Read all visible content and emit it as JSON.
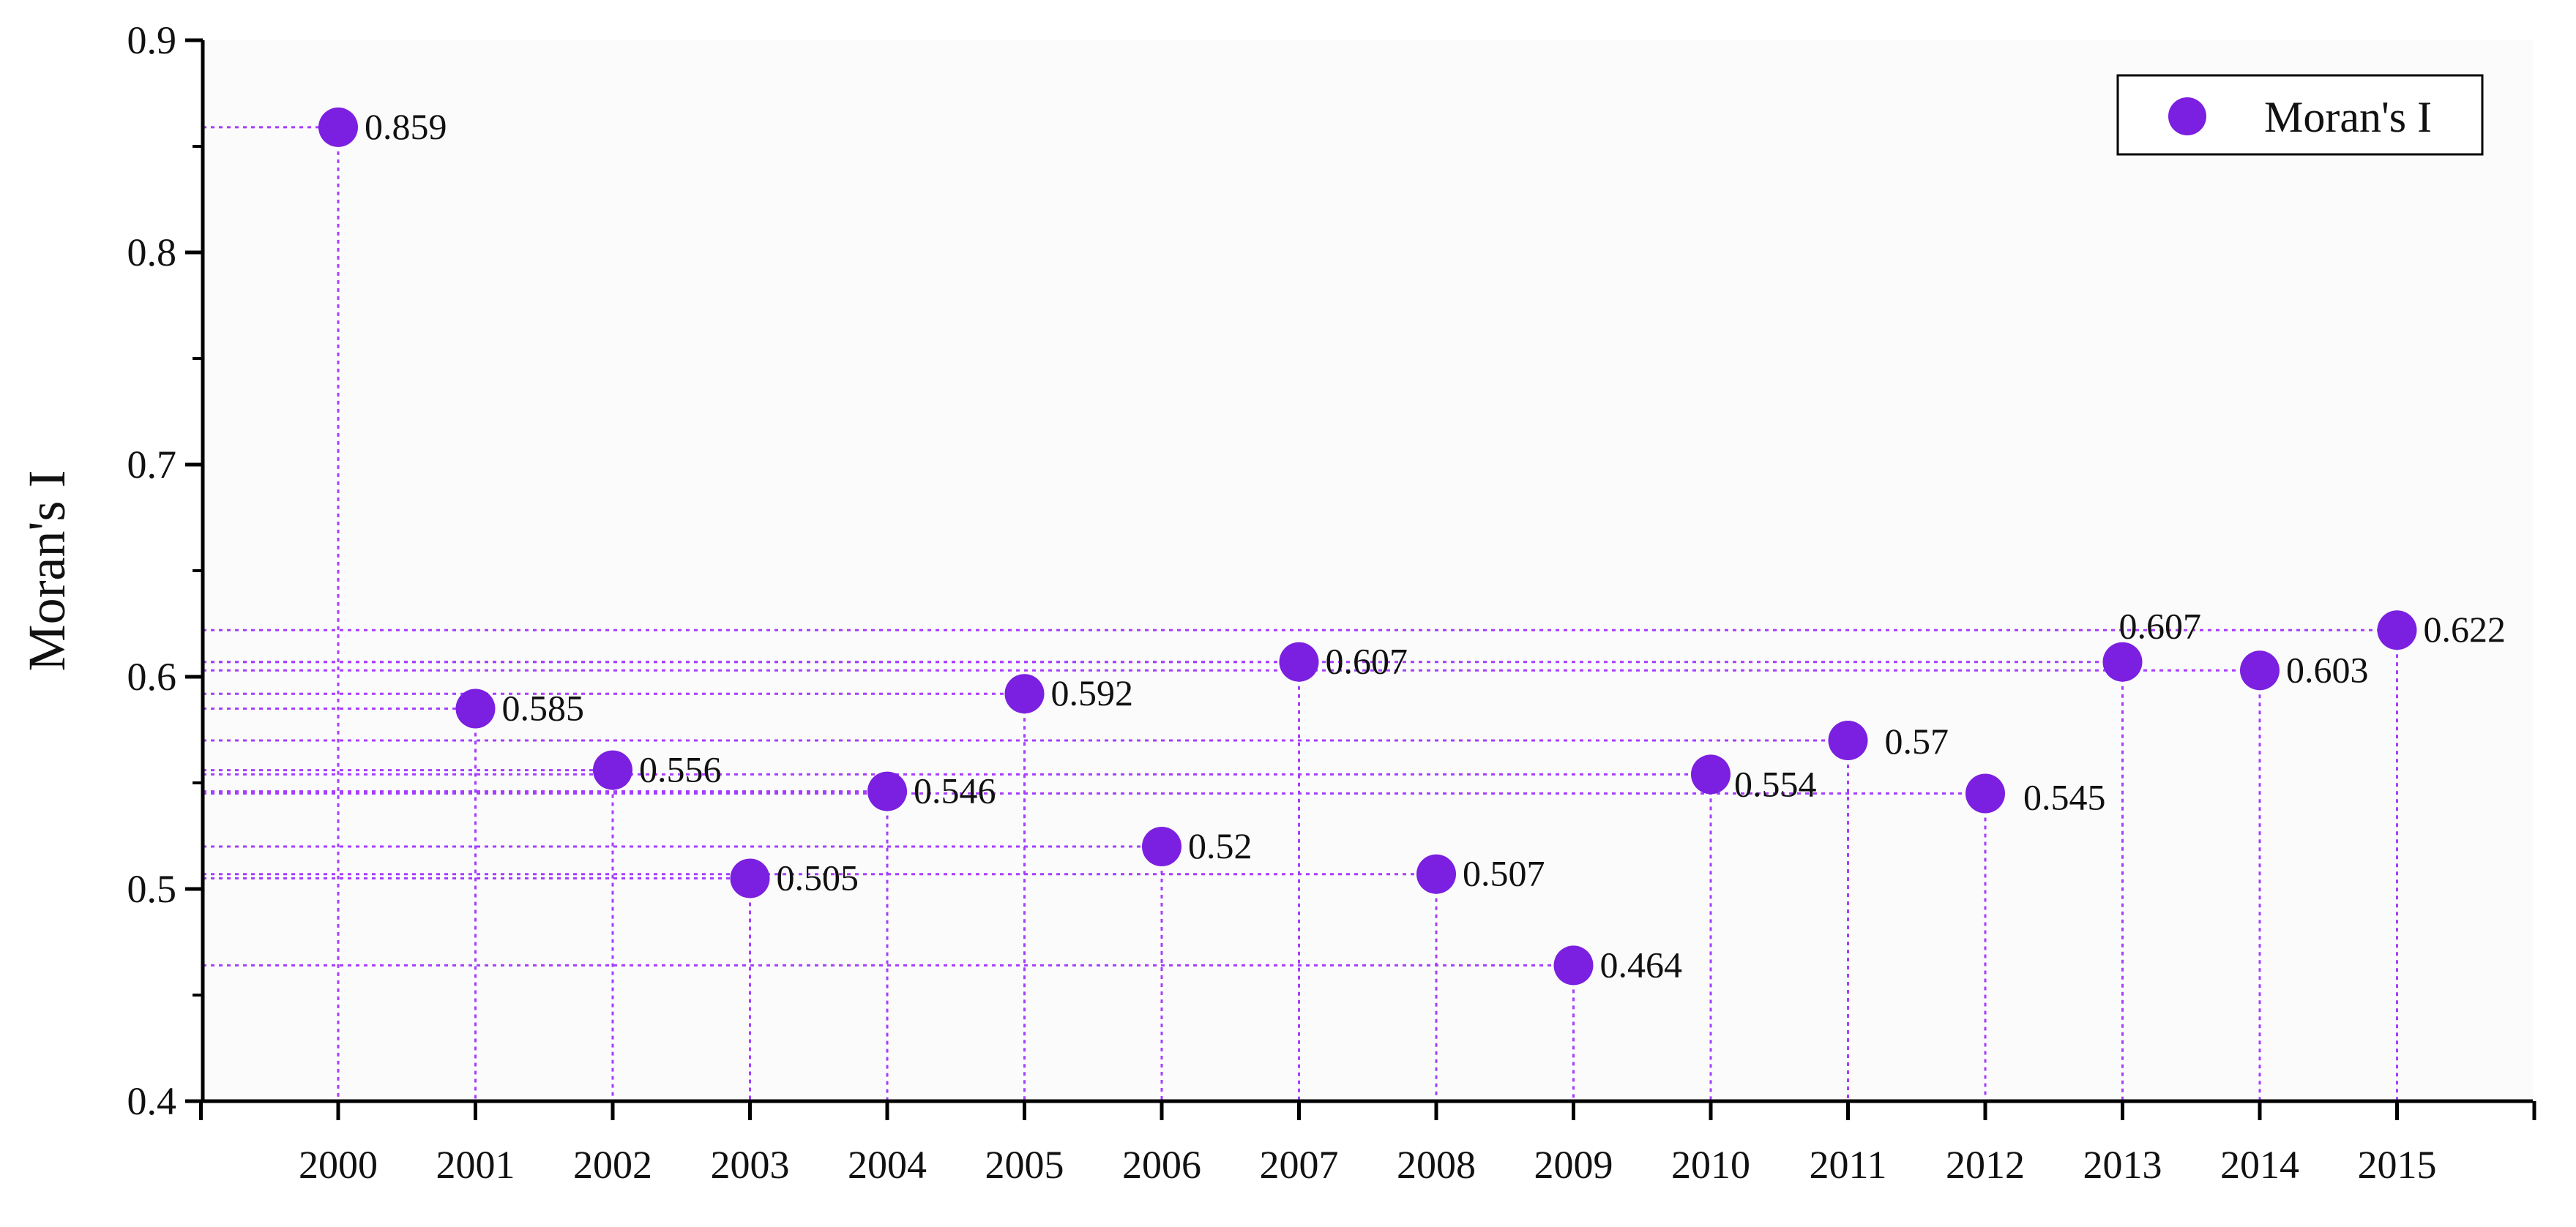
{
  "colors": {
    "marker": "#7B1FE0",
    "guide": "#A63DFF",
    "axis": "#000000",
    "plot_bg": "#FBFBFB"
  },
  "chart_data": {
    "type": "scatter",
    "title": "",
    "xlabel": "",
    "ylabel": "Moran's I",
    "x": [
      "2000",
      "2001",
      "2002",
      "2003",
      "2004",
      "2005",
      "2006",
      "2007",
      "2008",
      "2009",
      "2010",
      "2011",
      "2012",
      "2013",
      "2014",
      "2015"
    ],
    "series": [
      {
        "name": "Moran's I",
        "values": [
          0.859,
          0.585,
          0.556,
          0.505,
          0.546,
          0.592,
          0.52,
          0.607,
          0.507,
          0.464,
          0.554,
          0.57,
          0.545,
          0.607,
          0.603,
          0.622
        ],
        "labels": [
          "0.859",
          "0.585",
          "0.556",
          "0.505",
          "0.546",
          "0.592",
          "0.52",
          "0.607",
          "0.507",
          "0.464",
          "0.554",
          "0.57",
          "0.545",
          "0.607",
          "0.603",
          "0.622"
        ]
      }
    ],
    "ylim": [
      0.4,
      0.9
    ],
    "yticks": [
      "0.4",
      "0.5",
      "0.6",
      "0.7",
      "0.8",
      "0.9"
    ],
    "legend": {
      "label": "Moran's I",
      "position": "top-right"
    },
    "guide_lines": "dotted drop lines from each point to both axes",
    "grid": false
  }
}
